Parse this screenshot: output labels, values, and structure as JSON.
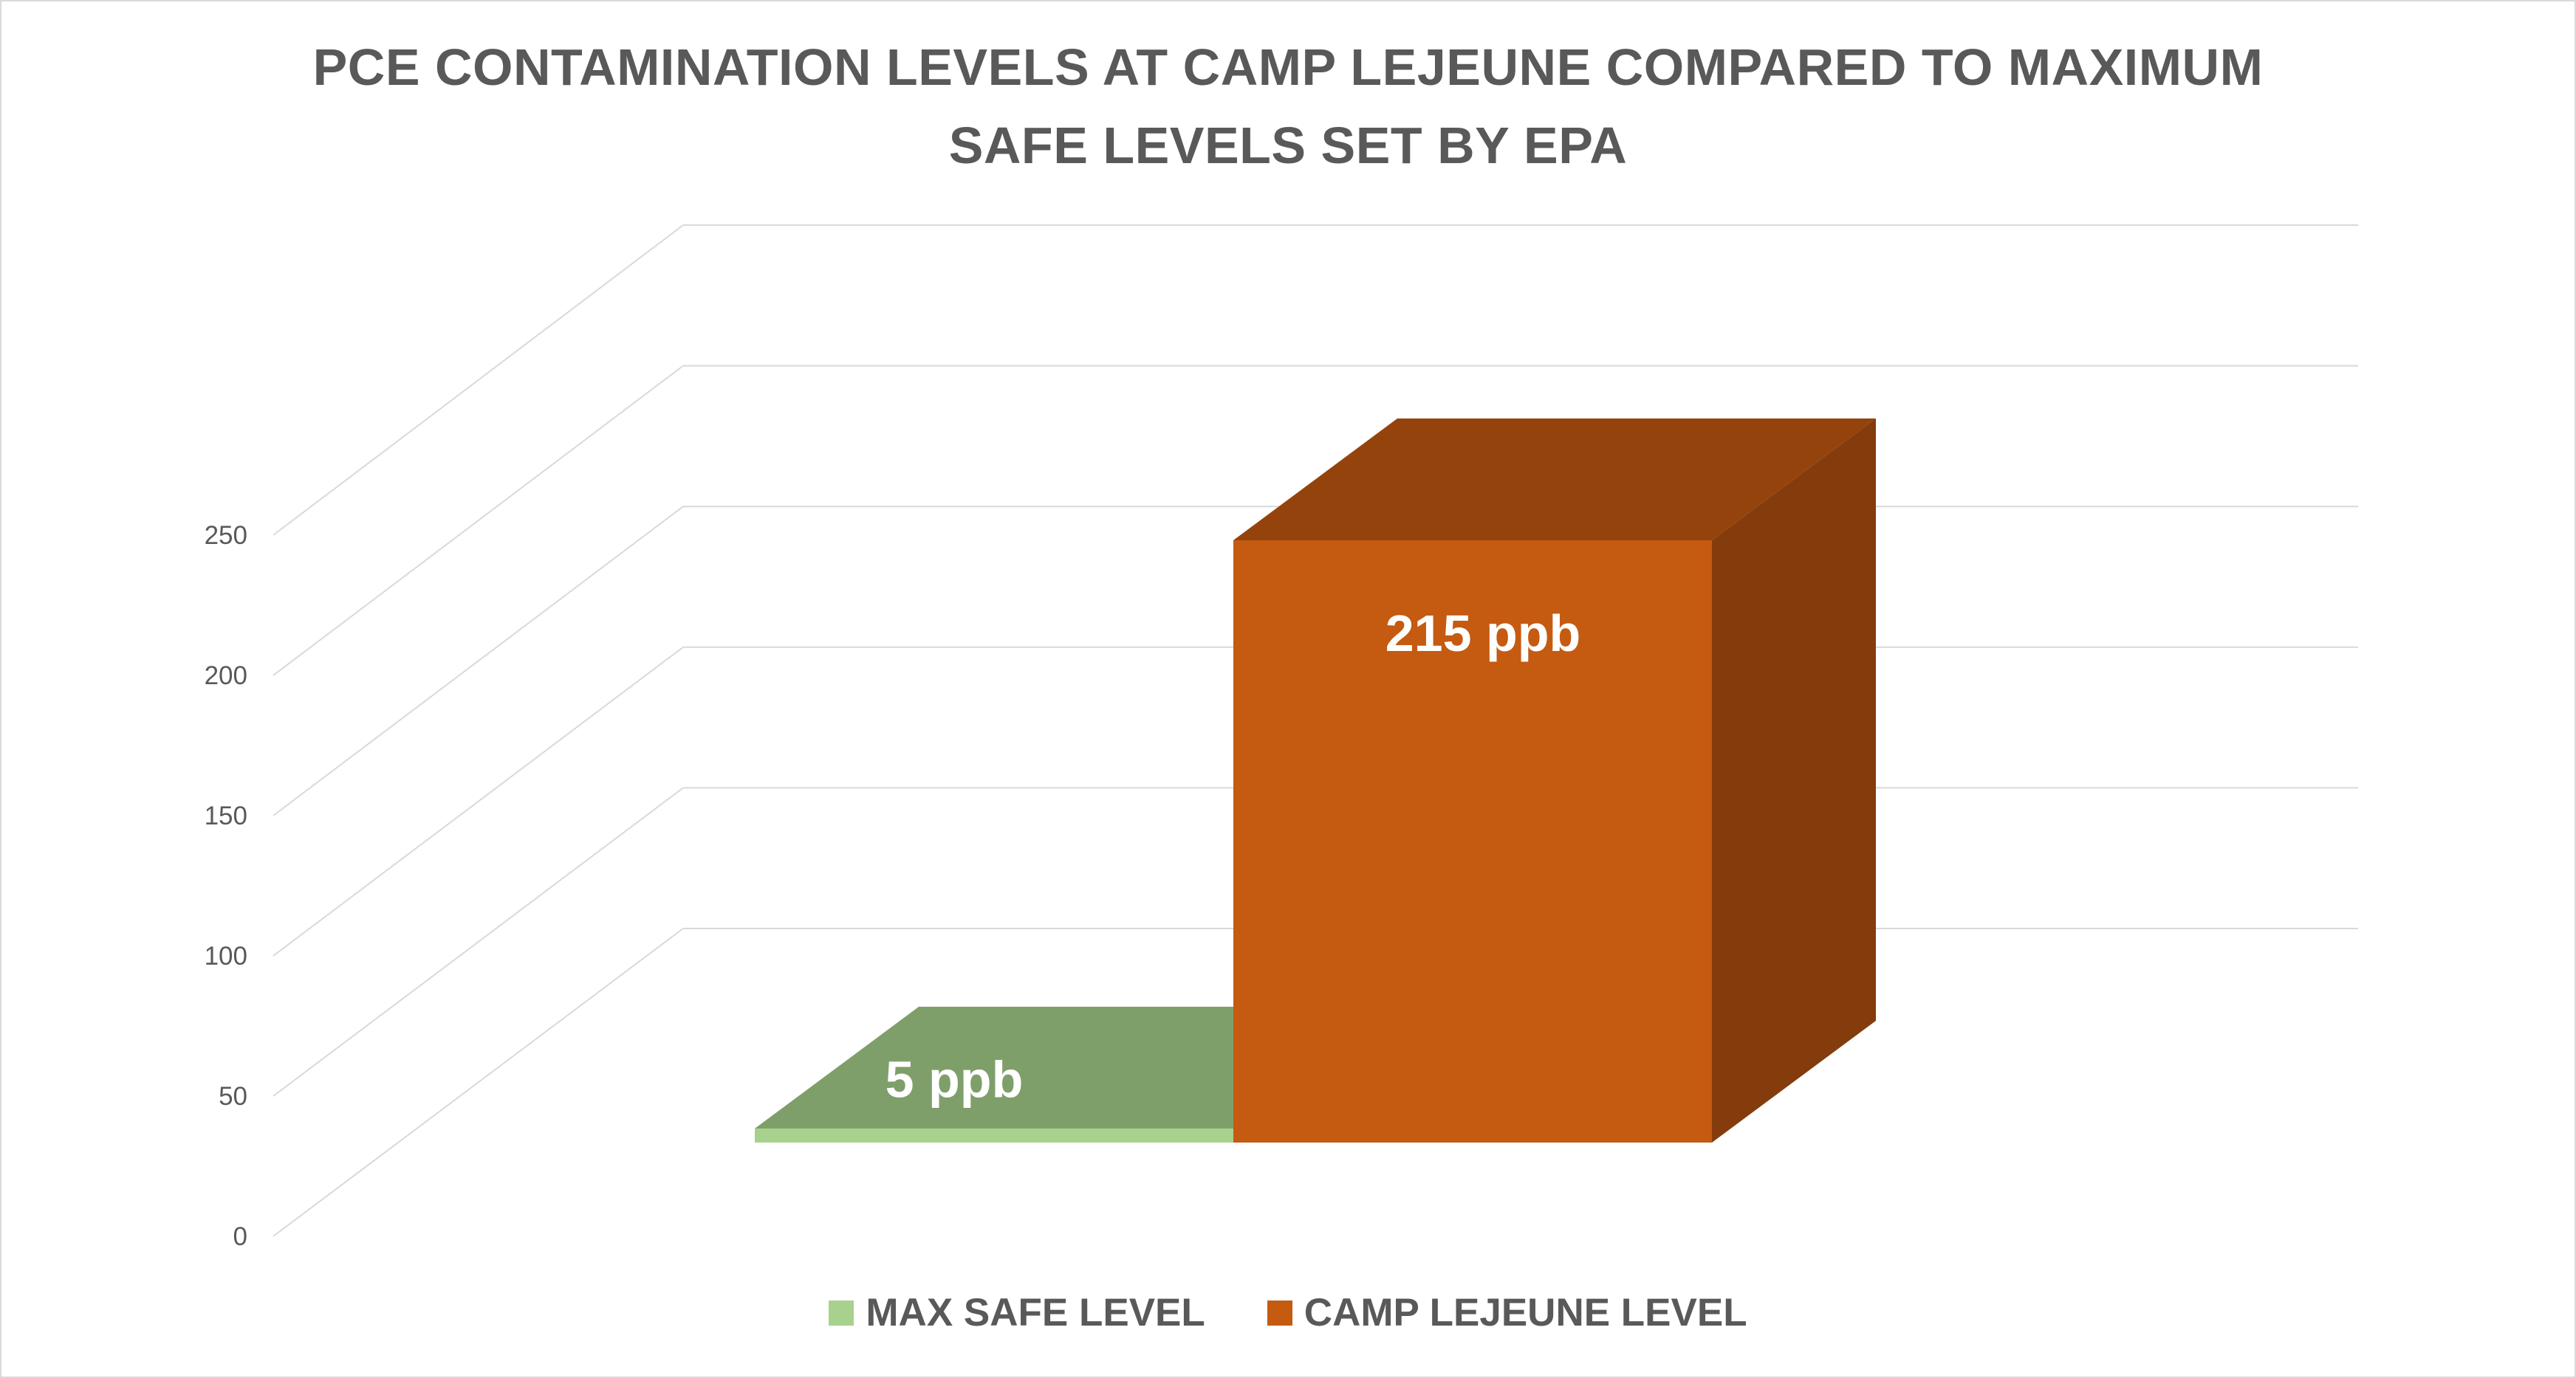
{
  "chart_data": {
    "type": "bar",
    "title": "PCE CONTAMINATION LEVELS AT CAMP LEJEUNE COMPARED TO MAXIMUM SAFE LEVELS SET BY EPA",
    "title_lines": [
      "PCE CONTAMINATION LEVELS AT CAMP LEJEUNE COMPARED TO MAXIMUM",
      "SAFE LEVELS SET BY EPA"
    ],
    "xlabel": "",
    "ylabel": "",
    "ylim": [
      0,
      250
    ],
    "yticks": [
      "0",
      "50",
      "100",
      "150",
      "200",
      "250"
    ],
    "grid": true,
    "style": "3d-clustered-column",
    "legend_position": "bottom",
    "series": [
      {
        "name": "MAX SAFE LEVEL",
        "value": 5,
        "label": "5 ppb",
        "color": "#a9d18e",
        "side_color": "#7f9f6a"
      },
      {
        "name": "CAMP LEJEUNE LEVEL",
        "value": 215,
        "label": "215 ppb",
        "color": "#c55a11",
        "side_color": "#843c0c",
        "top_color": "#95430d"
      }
    ]
  }
}
